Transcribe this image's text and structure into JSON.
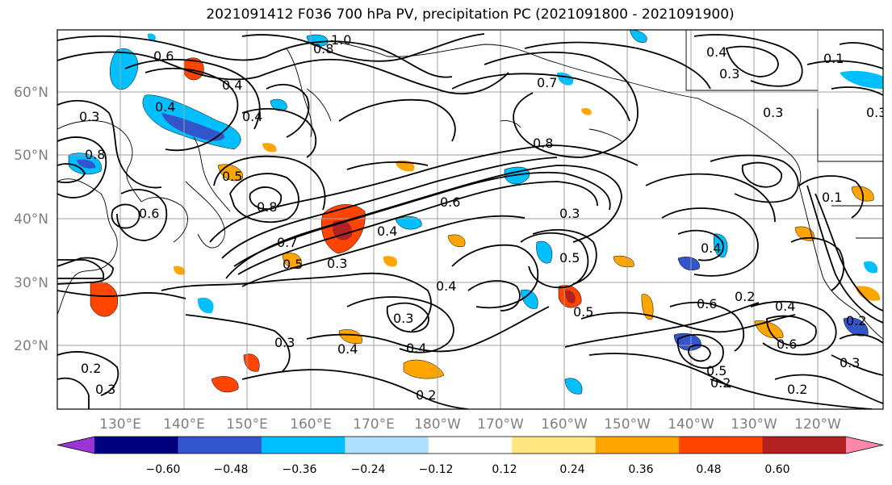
{
  "title": "2021091412 F036 700 hPa PV, precipitation PC (2021091800 - 2021091900)",
  "lat_labels": [
    "60°N",
    "50°N",
    "40°N",
    "30°N",
    "20°N"
  ],
  "lon_labels": [
    "130°E",
    "140°E",
    "150°E",
    "160°E",
    "170°E",
    "180°W",
    "170°W",
    "160°W",
    "150°W",
    "140°W",
    "130°W",
    "120°W"
  ],
  "colorbar": {
    "tick_labels": [
      "−0.60",
      "−0.48",
      "−0.36",
      "−0.24",
      "−0.12",
      "0.12",
      "0.24",
      "0.36",
      "0.48",
      "0.60"
    ],
    "colors": [
      "#9a35d4",
      "#00007f",
      "#3355cc",
      "#00bfff",
      "#b0e0ff",
      "#ffffff",
      "#ffe680",
      "#ffa500",
      "#ff4500",
      "#b22222",
      "#ff88aa"
    ]
  },
  "contour_labels": [
    "1.0",
    "0.8",
    "0.6",
    "0.4",
    "0.4",
    "0.4",
    "0.8",
    "0.8",
    "0.5",
    "0.6",
    "0.7",
    "0.5",
    "0.3",
    "0.4",
    "0.6",
    "0.8",
    "0.3",
    "0.4",
    "0.7",
    "0.3",
    "0.4",
    "0.3",
    "0.5",
    "0.4",
    "0.3",
    "0.4",
    "0.6",
    "0.2",
    "0.4",
    "0.5",
    "0.5",
    "0.2",
    "0.6",
    "0.3",
    "0.1",
    "0.2",
    "0.1",
    "0.4",
    "0.3",
    "0.3",
    "0.2",
    "0.3",
    "0.2",
    "0.3",
    "0.2"
  ]
}
